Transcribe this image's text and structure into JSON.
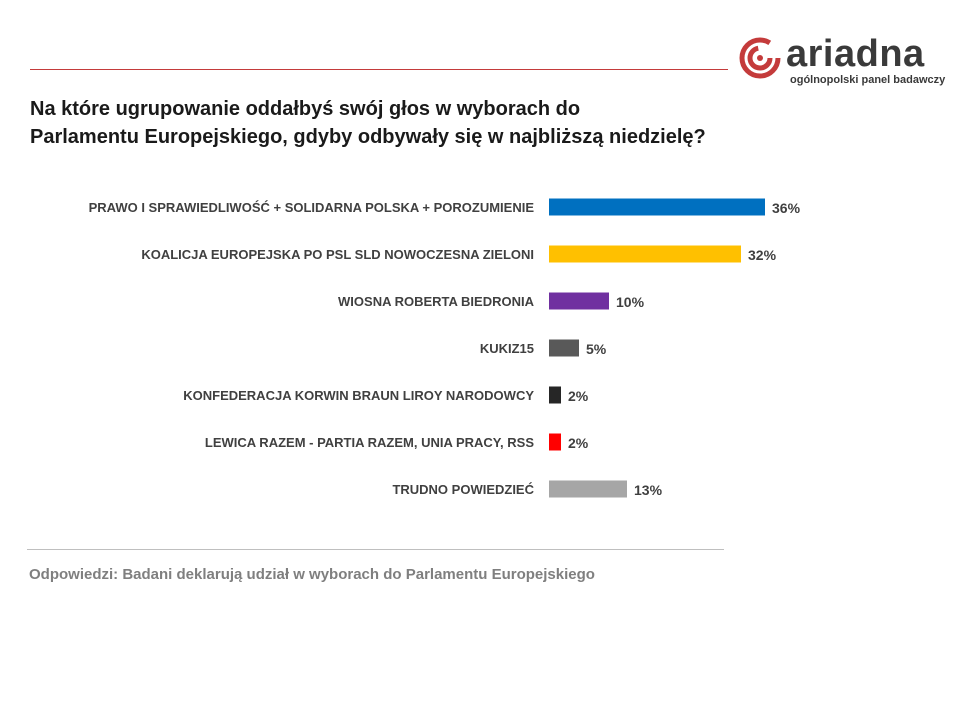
{
  "brand": {
    "name": "ariadna",
    "tagline": "ogólnopolski panel badawczy",
    "accent_color": "#c43b3b"
  },
  "header": {
    "title_line1": "Na które ugrupowanie oddałbyś swój głos w wyborach do",
    "title_line2": "Parlamentu Europejskiego, gdyby odbywały się w najbliższą niedzielę?"
  },
  "footnote": "Odpowiedzi: Badani deklarują udział w wyborach do Parlamentu Europejskiego",
  "chart_data": {
    "type": "bar",
    "orientation": "horizontal",
    "title": "Na które ugrupowanie oddałbyś swój głos w wyborach do Parlamentu Europejskiego, gdyby odbywały się w najbliższą niedzielę?",
    "xlabel": "",
    "ylabel": "",
    "unit": "%",
    "xlim": [
      0,
      40
    ],
    "categories": [
      "PRAWO I SPRAWIEDLIWOŚĆ + SOLIDARNA POLSKA + POROZUMIENIE",
      "KOALICJA EUROPEJSKA PO PSL SLD NOWOCZESNA ZIELONI",
      "WIOSNA ROBERTA BIEDRONIA",
      "KUKIZ15",
      "KONFEDERACJA KORWIN BRAUN LIROY NARODOWCY",
      "LEWICA RAZEM - PARTIA RAZEM, UNIA PRACY, RSS",
      "TRUDNO POWIEDZIEĆ"
    ],
    "values": [
      36,
      32,
      10,
      5,
      2,
      2,
      13
    ],
    "value_labels": [
      "36%",
      "32%",
      "10%",
      "5%",
      "2%",
      "2%",
      "13%"
    ],
    "colors": [
      "#0070c0",
      "#ffc000",
      "#7030a0",
      "#595959",
      "#262626",
      "#ff0000",
      "#a6a6a6"
    ],
    "grid": false,
    "legend": "none"
  }
}
